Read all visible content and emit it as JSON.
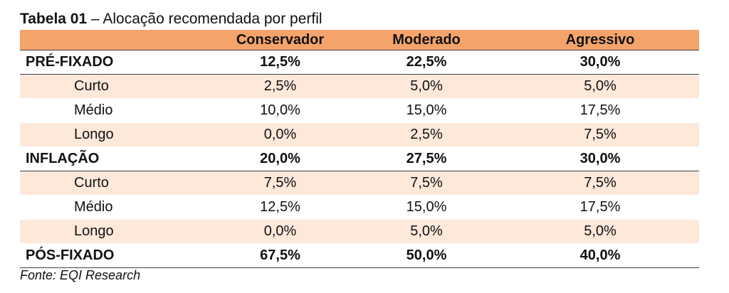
{
  "caption": {
    "label": "Tabela 01",
    "text": " – Alocação recomendada por perfil"
  },
  "table": {
    "headers": [
      "",
      "Conservador",
      "Moderado",
      "Agressivo"
    ],
    "rows": [
      {
        "label": "PRÉ-FIXADO",
        "values": [
          "12,5%",
          "22,5%",
          "30,0%"
        ]
      },
      {
        "label": "Curto",
        "values": [
          "2,5%",
          "5,0%",
          "5,0%"
        ]
      },
      {
        "label": "Médio",
        "values": [
          "10,0%",
          "15,0%",
          "17,5%"
        ]
      },
      {
        "label": "Longo",
        "values": [
          "0,0%",
          "2,5%",
          "7,5%"
        ]
      },
      {
        "label": "INFLAÇÃO",
        "values": [
          "20,0%",
          "27,5%",
          "30,0%"
        ]
      },
      {
        "label": "Curto",
        "values": [
          "7,5%",
          "7,5%",
          "7,5%"
        ]
      },
      {
        "label": "Médio",
        "values": [
          "12,5%",
          "15,0%",
          "17,5%"
        ]
      },
      {
        "label": "Longo",
        "values": [
          "0,0%",
          "5,0%",
          "5,0%"
        ]
      },
      {
        "label": "PÓS-FIXADO",
        "values": [
          "67,5%",
          "50,0%",
          "40,0%"
        ]
      }
    ]
  },
  "source": "Fonte: EQI Research",
  "colors": {
    "header_bg": "#f4a46b",
    "shade_bg": "#fde8da"
  }
}
